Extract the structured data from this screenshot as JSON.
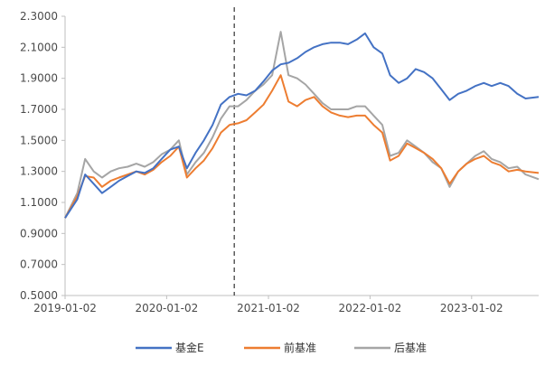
{
  "chart_data": {
    "type": "line",
    "title": "",
    "xlabel": "",
    "ylabel": "",
    "ylim": [
      0.5,
      2.3
    ],
    "y_ticks": [
      "0.5000",
      "0.7000",
      "0.9000",
      "1.1000",
      "1.3000",
      "1.5000",
      "1.7000",
      "1.9000",
      "2.1000",
      "2.3000"
    ],
    "x_ticks": [
      "2019-01-02",
      "2020-01-02",
      "2021-01-02",
      "2022-01-02",
      "2023-01-02"
    ],
    "x_range": [
      "2019-01-02",
      "2023-08-31"
    ],
    "grid": false,
    "legend_position": "bottom",
    "reference_line": {
      "x": "2020-09-01",
      "style": "dashed"
    },
    "x": [
      "2019-01-02",
      "2019-02-15",
      "2019-03-15",
      "2019-04-15",
      "2019-05-15",
      "2019-06-15",
      "2019-07-15",
      "2019-08-15",
      "2019-09-15",
      "2019-10-15",
      "2019-11-15",
      "2019-12-15",
      "2020-01-15",
      "2020-02-15",
      "2020-03-15",
      "2020-04-15",
      "2020-05-15",
      "2020-06-15",
      "2020-07-15",
      "2020-08-15",
      "2020-09-15",
      "2020-10-15",
      "2020-11-15",
      "2020-12-15",
      "2021-01-15",
      "2021-02-15",
      "2021-03-15",
      "2021-04-15",
      "2021-05-15",
      "2021-06-15",
      "2021-07-15",
      "2021-08-15",
      "2021-09-15",
      "2021-10-15",
      "2021-11-15",
      "2021-12-15",
      "2022-01-15",
      "2022-02-15",
      "2022-03-15",
      "2022-04-15",
      "2022-05-15",
      "2022-06-15",
      "2022-07-15",
      "2022-08-15",
      "2022-09-15",
      "2022-10-15",
      "2022-11-15",
      "2022-12-15",
      "2023-01-15",
      "2023-02-15",
      "2023-03-15",
      "2023-04-15",
      "2023-05-15",
      "2023-06-15",
      "2023-07-15",
      "2023-08-31"
    ],
    "series": [
      {
        "name": "基金E",
        "color": "#4472C4",
        "values": [
          1.0,
          1.12,
          1.28,
          1.22,
          1.16,
          1.2,
          1.24,
          1.27,
          1.3,
          1.29,
          1.32,
          1.38,
          1.44,
          1.46,
          1.32,
          1.42,
          1.5,
          1.6,
          1.73,
          1.78,
          1.8,
          1.79,
          1.82,
          1.88,
          1.95,
          1.99,
          2.0,
          2.03,
          2.07,
          2.1,
          2.12,
          2.13,
          2.13,
          2.12,
          2.15,
          2.19,
          2.1,
          2.06,
          1.92,
          1.87,
          1.9,
          1.96,
          1.94,
          1.9,
          1.83,
          1.76,
          1.8,
          1.82,
          1.85,
          1.87,
          1.85,
          1.87,
          1.85,
          1.8,
          1.77,
          1.78
        ]
      },
      {
        "name": "前基准",
        "color": "#ED7D31",
        "values": [
          1.0,
          1.14,
          1.27,
          1.26,
          1.2,
          1.24,
          1.26,
          1.28,
          1.3,
          1.28,
          1.31,
          1.36,
          1.4,
          1.46,
          1.26,
          1.32,
          1.37,
          1.45,
          1.55,
          1.6,
          1.61,
          1.63,
          1.68,
          1.73,
          1.82,
          1.92,
          1.75,
          1.72,
          1.76,
          1.78,
          1.72,
          1.68,
          1.66,
          1.65,
          1.66,
          1.66,
          1.6,
          1.55,
          1.37,
          1.4,
          1.48,
          1.45,
          1.42,
          1.38,
          1.32,
          1.22,
          1.3,
          1.35,
          1.38,
          1.4,
          1.36,
          1.34,
          1.3,
          1.31,
          1.3,
          1.29
        ]
      },
      {
        "name": "后基准",
        "color": "#A5A5A5",
        "values": [
          1.0,
          1.16,
          1.38,
          1.3,
          1.26,
          1.3,
          1.32,
          1.33,
          1.35,
          1.33,
          1.36,
          1.41,
          1.44,
          1.5,
          1.28,
          1.36,
          1.42,
          1.52,
          1.64,
          1.72,
          1.72,
          1.76,
          1.82,
          1.86,
          1.92,
          2.2,
          1.92,
          1.9,
          1.86,
          1.8,
          1.74,
          1.7,
          1.7,
          1.7,
          1.72,
          1.72,
          1.66,
          1.6,
          1.4,
          1.42,
          1.5,
          1.46,
          1.42,
          1.36,
          1.32,
          1.2,
          1.3,
          1.35,
          1.4,
          1.43,
          1.38,
          1.36,
          1.32,
          1.33,
          1.28,
          1.25
        ]
      }
    ]
  }
}
